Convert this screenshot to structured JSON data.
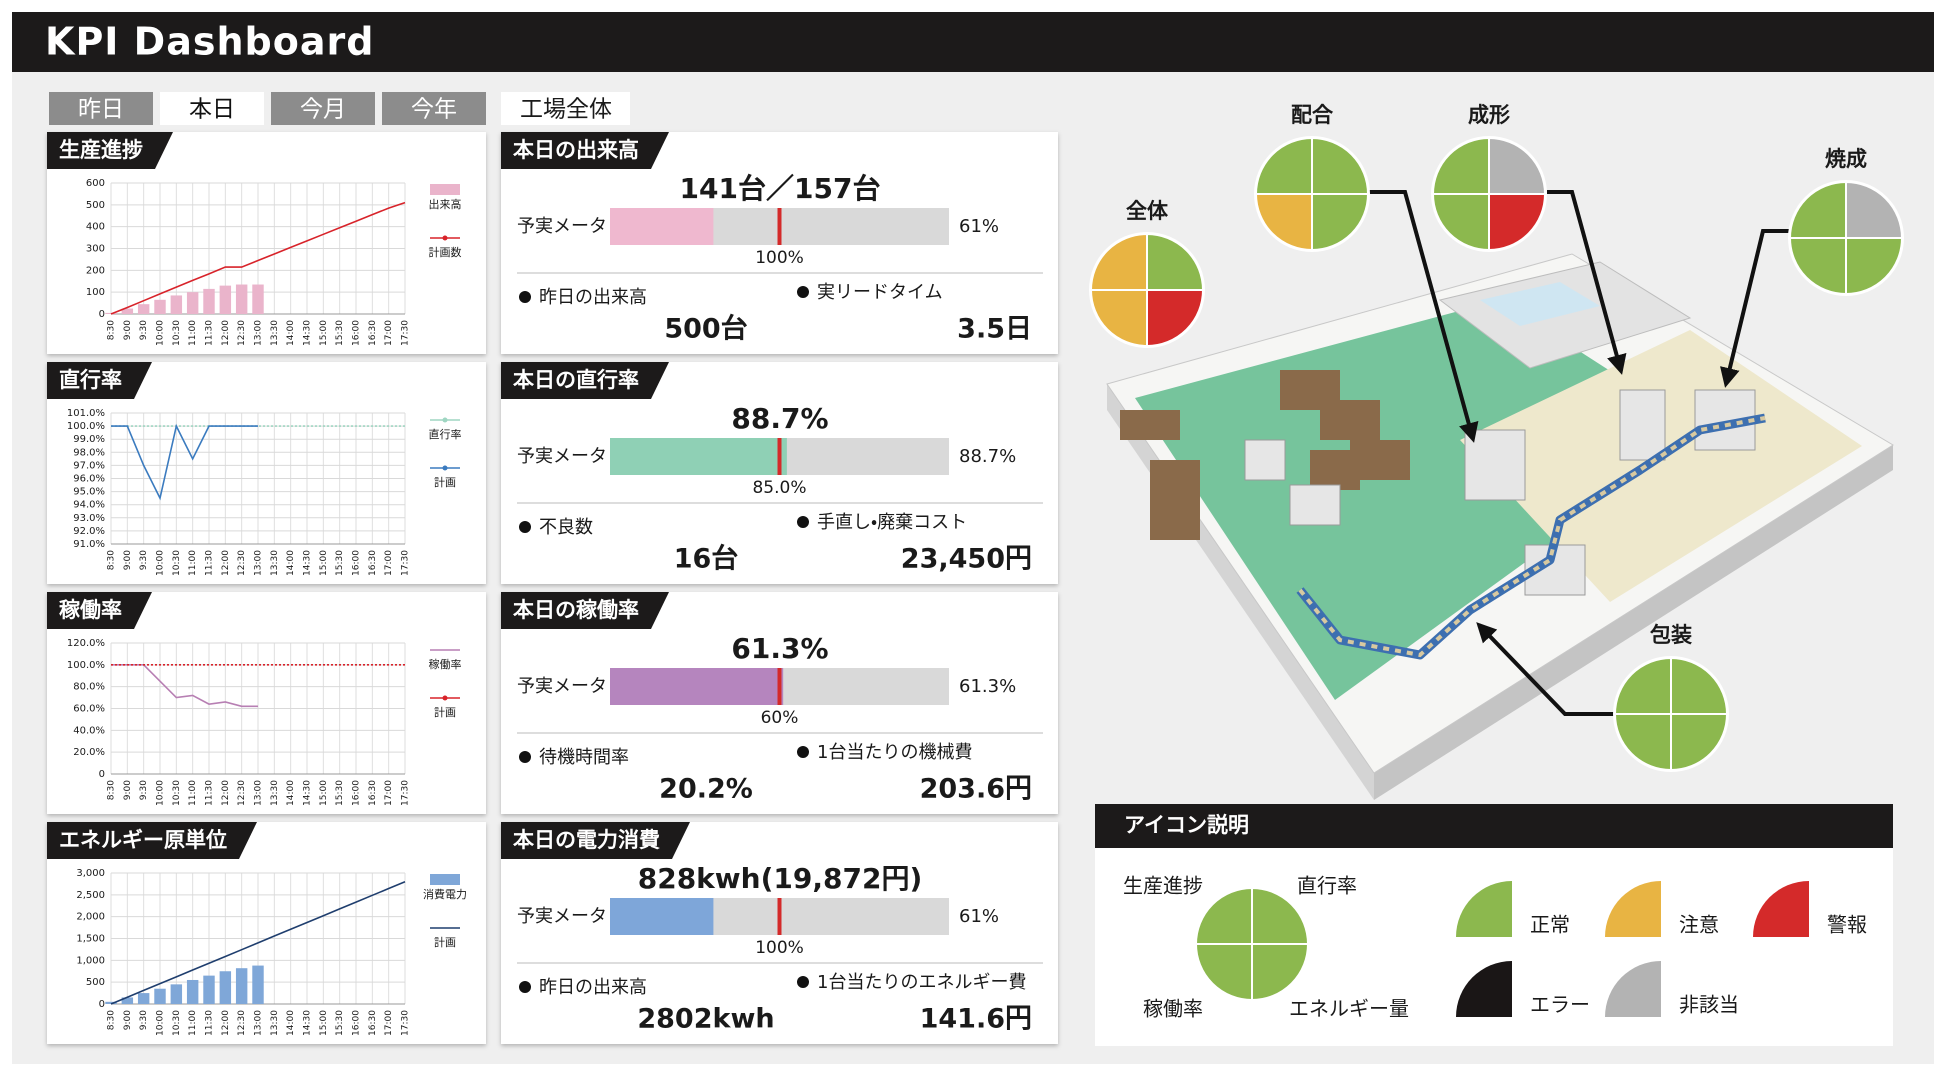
{
  "header": {
    "title": "KPI Dashboard"
  },
  "tabs": {
    "items": [
      "昨日",
      "本日",
      "今月",
      "今年"
    ],
    "active": 1
  },
  "scope": "工場全体",
  "charts": [
    {
      "type": "combo",
      "title": "生産進捗",
      "categories": [
        "8:30",
        "9:00",
        "9:30",
        "10:00",
        "10:30",
        "11:00",
        "11:30",
        "12:00",
        "12:30",
        "13:00",
        "13:30",
        "14:00",
        "14:30",
        "15:00",
        "15:30",
        "16:00",
        "16:30",
        "17:00",
        "17:30"
      ],
      "ylim": [
        0,
        600
      ],
      "yticks": [
        0,
        100,
        200,
        300,
        400,
        500,
        600
      ],
      "grid": true,
      "series": [
        {
          "name": "出来高",
          "type": "bar",
          "color": "#eab4cb",
          "values": [
            5,
            25,
            45,
            65,
            85,
            100,
            115,
            130,
            135,
            135,
            null,
            null,
            null,
            null,
            null,
            null,
            null,
            null,
            null
          ]
        },
        {
          "name": "計画数",
          "type": "line",
          "color": "#d8232a",
          "marker": true,
          "values": [
            0,
            30,
            61,
            92,
            123,
            154,
            184,
            215,
            215,
            245,
            275,
            305,
            335,
            365,
            395,
            425,
            455,
            485,
            510
          ]
        }
      ]
    },
    {
      "type": "line",
      "title": "直行率",
      "categories": [
        "8:30",
        "9:00",
        "9:30",
        "10:00",
        "10:30",
        "11:00",
        "11:30",
        "12:00",
        "12:30",
        "13:00",
        "13:30",
        "14:00",
        "14:30",
        "15:00",
        "15:30",
        "16:00",
        "16:30",
        "17:00",
        "17:30"
      ],
      "ylim": [
        91,
        101
      ],
      "yticks": [
        {
          "value": 91,
          "label": "91.0%"
        },
        {
          "value": 92,
          "label": "92.0%"
        },
        {
          "value": 93,
          "label": "93.0%"
        },
        {
          "value": 94,
          "label": "94.0%"
        },
        {
          "value": 95,
          "label": "95.0%"
        },
        {
          "value": 96,
          "label": "96.0%"
        },
        {
          "value": 97,
          "label": "97.0%"
        },
        {
          "value": 98,
          "label": "98.0%"
        },
        {
          "value": 99,
          "label": "99.0%"
        },
        {
          "value": 100,
          "label": "100.0%"
        },
        {
          "value": 101,
          "label": "101.0%"
        }
      ],
      "grid": true,
      "series": [
        {
          "name": "直行率",
          "type": "line",
          "color": "#9fd6c2",
          "marker": true,
          "dotted": true,
          "values": [
            100,
            100,
            100,
            100,
            100,
            100,
            100,
            100,
            100,
            100,
            100,
            100,
            100,
            100,
            100,
            100,
            100,
            100,
            100
          ]
        },
        {
          "name": "計画",
          "type": "line",
          "color": "#3b7bbf",
          "marker": true,
          "values": [
            100,
            100,
            97,
            94.5,
            100,
            97.5,
            100,
            100,
            100,
            100,
            null,
            null,
            null,
            null,
            null,
            null,
            null,
            null,
            null
          ]
        }
      ]
    },
    {
      "type": "line",
      "title": "稼働率",
      "categories": [
        "8:30",
        "9:00",
        "9:30",
        "10:00",
        "10:30",
        "11:00",
        "11:30",
        "12:00",
        "12:30",
        "13:00",
        "13:30",
        "14:00",
        "14:30",
        "15:00",
        "15:30",
        "16:00",
        "16:30",
        "17:00",
        "17:30"
      ],
      "ylim": [
        0,
        120
      ],
      "yticks": [
        0,
        {
          "value": 20,
          "label": "20.0%"
        },
        {
          "value": 40,
          "label": "40.0%"
        },
        {
          "value": 60,
          "label": "60.0%"
        },
        {
          "value": 80,
          "label": "80.0%"
        },
        {
          "value": 100,
          "label": "100.0%"
        },
        {
          "value": 120,
          "label": "120.0%"
        }
      ],
      "grid": true,
      "series": [
        {
          "name": "稼働率",
          "type": "line",
          "color": "#b77fb3",
          "values": [
            100,
            100,
            100,
            85,
            70,
            72,
            64,
            66,
            62,
            62,
            null,
            null,
            null,
            null,
            null,
            null,
            null,
            null,
            null
          ]
        },
        {
          "name": "計画",
          "type": "line",
          "color": "#d8232a",
          "marker": true,
          "dotted": true,
          "values": [
            100,
            100,
            100,
            100,
            100,
            100,
            100,
            100,
            100,
            100,
            100,
            100,
            100,
            100,
            100,
            100,
            100,
            100,
            100
          ]
        }
      ]
    },
    {
      "type": "combo",
      "title": "エネルギー原単位",
      "categories": [
        "8:30",
        "9:00",
        "9:30",
        "10:00",
        "10:30",
        "11:00",
        "11:30",
        "12:00",
        "12:30",
        "13:00",
        "13:30",
        "14:00",
        "14:30",
        "15:00",
        "15:30",
        "16:00",
        "16:30",
        "17:00",
        "17:30"
      ],
      "ylim": [
        0,
        3000
      ],
      "yticks": [
        0,
        500,
        {
          "value": 1000,
          "label": "1,000"
        },
        {
          "value": 1500,
          "label": "1,500"
        },
        {
          "value": 2000,
          "label": "2,000"
        },
        {
          "value": 2500,
          "label": "2,500"
        },
        {
          "value": 3000,
          "label": "3,000"
        }
      ],
      "grid": true,
      "series": [
        {
          "name": "消費電力",
          "type": "bar",
          "color": "#7fa7d8",
          "values": [
            50,
            150,
            250,
            350,
            450,
            550,
            650,
            750,
            820,
            880,
            null,
            null,
            null,
            null,
            null,
            null,
            null,
            null,
            null
          ]
        },
        {
          "name": "計画",
          "type": "line",
          "color": "#1f3e6e",
          "values": [
            0,
            155,
            311,
            467,
            622,
            778,
            933,
            1089,
            1244,
            1400,
            1556,
            1711,
            1867,
            2022,
            2178,
            2333,
            2489,
            2644,
            2800
          ]
        }
      ]
    }
  ],
  "kpis": [
    {
      "title": "本日の出来高",
      "headline": "141台／157台",
      "meter": {
        "label": "予実メータ",
        "color": "#efb8cf",
        "value": {
          "value": 61,
          "label": "61%"
        },
        "target": {
          "value": 100,
          "label": "100%"
        }
      },
      "stats": [
        {
          "label": "昨日の出来高",
          "value": "500台"
        },
        {
          "label": "実リードタイム",
          "value": "3.5日"
        }
      ]
    },
    {
      "title": "本日の直行率",
      "headline": "88.7%",
      "meter": {
        "label": "予実メータ",
        "color": "#8fd0b5",
        "value": {
          "value": 88.7,
          "label": "88.7%"
        },
        "target": {
          "value": 85.0,
          "label": "85.0%"
        }
      },
      "stats": [
        {
          "label": "不良数",
          "value": "16台"
        },
        {
          "label": "手直し・廃棄コスト",
          "value": "23,450円"
        }
      ]
    },
    {
      "title": "本日の稼働率",
      "headline": "61.3%",
      "meter": {
        "label": "予実メータ",
        "color": "#b585be",
        "value": {
          "value": 61.3,
          "label": "61.3%"
        },
        "target": {
          "value": 60,
          "label": "60%"
        }
      },
      "stats": [
        {
          "label": "待機時間率",
          "value": "20.2%"
        },
        {
          "label": "1台当たりの機械費",
          "value": "203.6円"
        }
      ]
    },
    {
      "title": "本日の電力消費",
      "headline": "828kwh(19,872円)",
      "meter": {
        "label": "予実メータ",
        "color": "#7ea6d9",
        "value": {
          "value": 61,
          "label": "61%"
        },
        "target": {
          "value": 100,
          "label": "100%"
        }
      },
      "stats": [
        {
          "label": "昨日の出来高",
          "value": "2802kwh"
        },
        {
          "label": "1台当たりのエネルギー費",
          "value": "141.6円"
        }
      ]
    }
  ],
  "factory": {
    "stations": [
      {
        "name": "全体",
        "quadrants": [
          "#e8b443",
          "#8cb84e",
          "#e8b443",
          "#d42a2a"
        ]
      },
      {
        "name": "配合",
        "quadrants": [
          "#8cb84e",
          "#8cb84e",
          "#e8b443",
          "#8cb84e"
        ]
      },
      {
        "name": "成形",
        "quadrants": [
          "#8cb84e",
          "#b3b3b3",
          "#8cb84e",
          "#d42a2a"
        ]
      },
      {
        "name": "焼成",
        "quadrants": [
          "#8cb84e",
          "#b3b3b3",
          "#8cb84e",
          "#8cb84e"
        ]
      },
      {
        "name": "包装",
        "quadrants": [
          "#8cb84e",
          "#8cb84e",
          "#8cb84e",
          "#8cb84e"
        ]
      }
    ]
  },
  "legend": {
    "title": "アイコン説明",
    "quadrant_labels": [
      "生産進捗",
      "直行率",
      "稼働率",
      "エネルギー量"
    ],
    "quadrant_color": "#8cb84e",
    "statuses": [
      {
        "label": "正常",
        "color": "#8cb84e"
      },
      {
        "label": "注意",
        "color": "#e8b443"
      },
      {
        "label": "警報",
        "color": "#d42a2a"
      },
      {
        "label": "エラー",
        "color": "#1a1616"
      },
      {
        "label": "非該当",
        "color": "#b3b3b3"
      }
    ]
  }
}
